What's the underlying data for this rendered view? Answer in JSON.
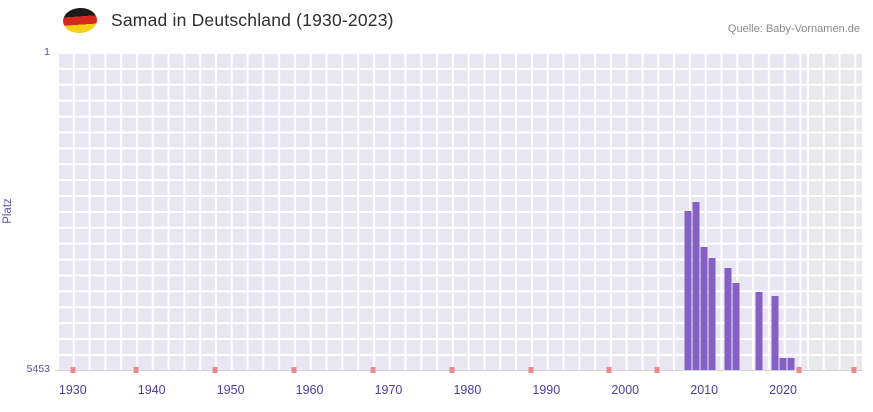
{
  "header": {
    "title": "Samad in Deutschland (1930-2023)",
    "source": "Quelle: Baby-Vornamen.de"
  },
  "chart_data": {
    "type": "bar",
    "title": "Samad in Deutschland (1930-2023)",
    "xlabel": "",
    "ylabel": "Platz",
    "y_axis": {
      "min": 1,
      "max": 5453,
      "inverted": true,
      "top_label": "1",
      "bottom_label": "5453"
    },
    "x_domain": [
      1928,
      2030
    ],
    "data_end_year": 2023,
    "x_ticks": [
      1930,
      1940,
      1950,
      1960,
      1970,
      1980,
      1990,
      2000,
      2010,
      2020
    ],
    "bars": [
      {
        "year": 2008,
        "rank": 2730
      },
      {
        "year": 2009,
        "rank": 2575
      },
      {
        "year": 2010,
        "rank": 3345
      },
      {
        "year": 2011,
        "rank": 3530
      },
      {
        "year": 2013,
        "rank": 3705
      },
      {
        "year": 2014,
        "rank": 3960
      },
      {
        "year": 2017,
        "rank": 4115
      },
      {
        "year": 2019,
        "rank": 4185
      },
      {
        "year": 2020,
        "rank": 5250
      },
      {
        "year": 2021,
        "rank": 5250
      }
    ],
    "no_data_marker_years": [
      1930,
      1938,
      1948,
      1958,
      1968,
      1978,
      1988,
      1998,
      2004,
      2022,
      2029
    ],
    "legend": null,
    "grid": true,
    "colors": {
      "bar": "#8661c5",
      "plot_bg": "#e9e6f4",
      "grid": "#ffffff",
      "out_of_range_bg": "#e9e9ec",
      "axis_label": "#4b3f9f",
      "tick_red": "#e98b8b",
      "axis_line": "#d2d2d2"
    }
  }
}
